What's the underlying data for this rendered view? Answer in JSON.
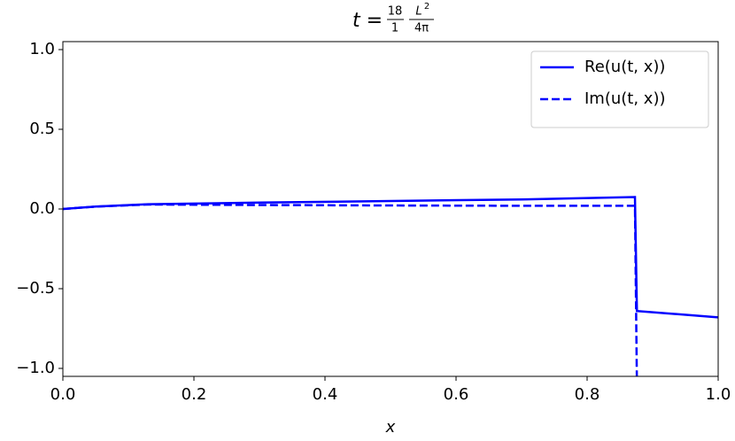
{
  "chart_data": {
    "type": "line",
    "title": {
      "lhs": "t =",
      "frac1_num": "18",
      "frac1_den": "1",
      "frac2_num": "L",
      "frac2_sup": "2",
      "frac2_den": "4π"
    },
    "x_label": "x",
    "x": [
      0,
      0.05,
      0.13,
      0.3,
      0.5,
      0.7,
      0.873,
      0.876,
      1.0
    ],
    "series": [
      {
        "name": "Re(u(t, x))",
        "color": "#0000ff",
        "dash": "solid",
        "values": [
          0,
          0.015,
          0.03,
          0.04,
          0.05,
          0.06,
          0.075,
          -0.64,
          -0.68
        ]
      },
      {
        "name": "Im(u(t, x))",
        "color": "#0000ff",
        "dash": "dashed",
        "values": [
          0,
          0.015,
          0.028,
          0.025,
          0.022,
          0.02,
          0.02,
          -1.1,
          null
        ]
      }
    ],
    "xlim": [
      0,
      1
    ],
    "ylim": [
      -1.05,
      1.05
    ],
    "xticks": [
      {
        "value": 0,
        "label": "0.0"
      },
      {
        "value": 0.2,
        "label": "0.2"
      },
      {
        "value": 0.4,
        "label": "0.4"
      },
      {
        "value": 0.6,
        "label": "0.6"
      },
      {
        "value": 0.8,
        "label": "0.8"
      },
      {
        "value": 1,
        "label": "1.0"
      }
    ],
    "yticks": [
      {
        "value": -1,
        "label": "−1.0"
      },
      {
        "value": -0.5,
        "label": "−0.5"
      },
      {
        "value": 0,
        "label": "0.0"
      },
      {
        "value": 0.5,
        "label": "0.5"
      },
      {
        "value": 1,
        "label": "1.0"
      }
    ],
    "legend": "upper right",
    "grid": false
  }
}
